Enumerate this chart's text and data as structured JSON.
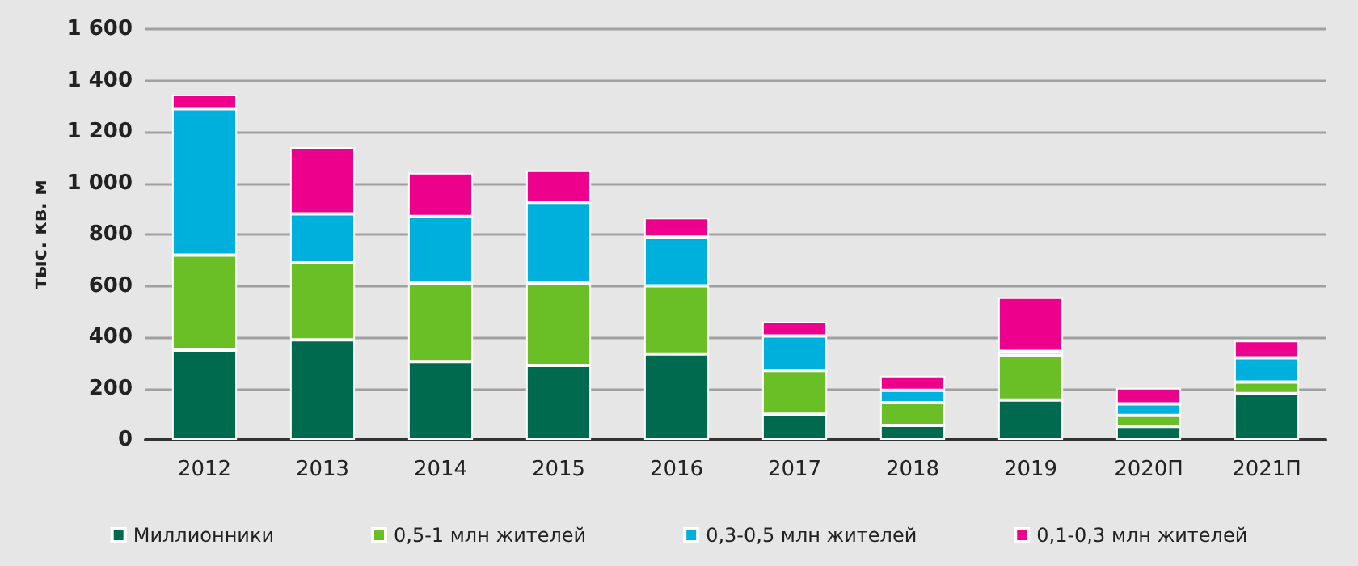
{
  "chart_data": {
    "type": "bar",
    "stacked": true,
    "ylabel": "тыс. кв. м",
    "categories": [
      "2012",
      "2013",
      "2014",
      "2015",
      "2016",
      "2017",
      "2018",
      "2019",
      "2020П",
      "2021П"
    ],
    "series": [
      {
        "name": "Миллионники",
        "color": "#006a4e",
        "values": [
          350,
          390,
          305,
          290,
          335,
          100,
          57,
          155,
          53,
          180
        ]
      },
      {
        "name": "0,5-1 млн жителей",
        "color": "#6abf27",
        "values": [
          370,
          300,
          305,
          320,
          265,
          170,
          88,
          175,
          42,
          45
        ]
      },
      {
        "name": "0,3-0,5 млн жителей",
        "color": "#00b0dc",
        "values": [
          570,
          190,
          260,
          315,
          190,
          135,
          48,
          15,
          45,
          95
        ]
      },
      {
        "name": "0,1-0,3 млн жителей",
        "color": "#ec008c",
        "values": [
          55,
          260,
          170,
          125,
          75,
          55,
          57,
          210,
          62,
          67
        ]
      }
    ],
    "ylim": [
      0,
      1600
    ],
    "yticks": [
      0,
      200,
      400,
      600,
      800,
      {
        "value": 1000,
        "label": "1 000"
      },
      {
        "value": 1200,
        "label": "1 200"
      },
      {
        "value": 1400,
        "label": "1 400"
      },
      {
        "value": 1600,
        "label": "1 600"
      }
    ],
    "grid": "y",
    "legend": "bottom"
  }
}
